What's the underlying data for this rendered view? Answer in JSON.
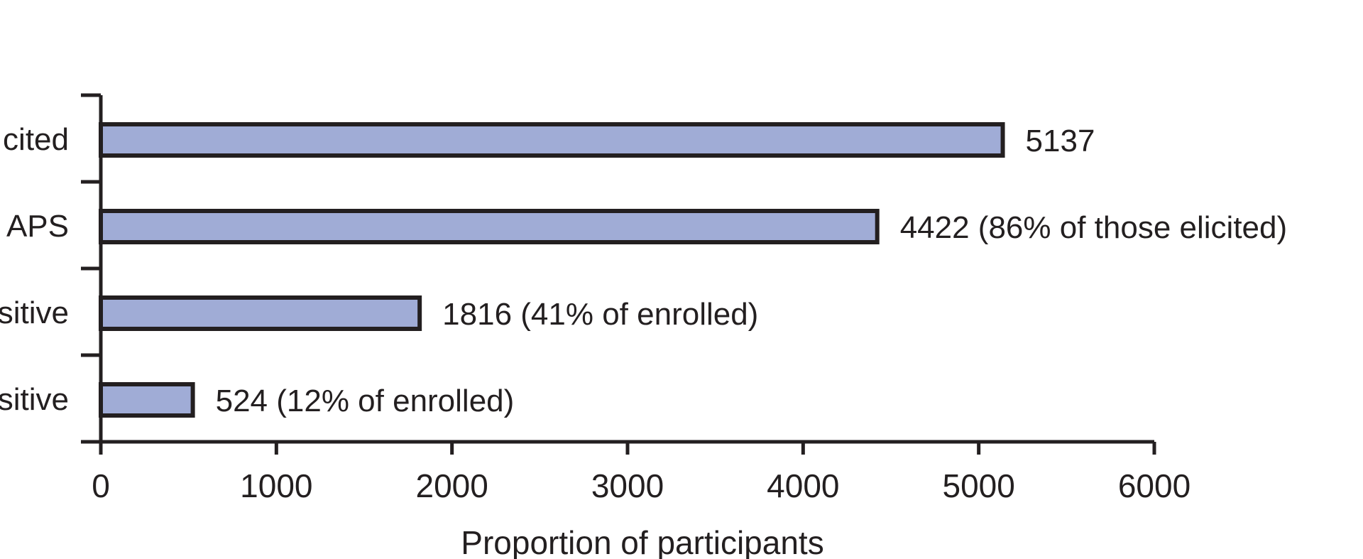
{
  "chart_data": {
    "type": "bar",
    "orientation": "horizontal",
    "categories": [
      "cited",
      "APS",
      "sitive",
      "sitive"
    ],
    "values": [
      5137,
      4422,
      1816,
      524
    ],
    "data_labels": [
      "5137",
      "4422 (86% of those elicited)",
      "1816 (41% of enrolled)",
      "524 (12% of enrolled)"
    ],
    "xlabel": "Proportion of participants",
    "ylabel": "",
    "xlim": [
      0,
      6000
    ],
    "xticks": [
      0,
      1000,
      2000,
      3000,
      4000,
      5000,
      6000
    ],
    "xtick_labels": [
      "0",
      "1000",
      "2000",
      "3000",
      "4000",
      "5000",
      "6000"
    ],
    "grid": false,
    "bar_color": "#a0acd6",
    "edge_color": "#231f20"
  }
}
